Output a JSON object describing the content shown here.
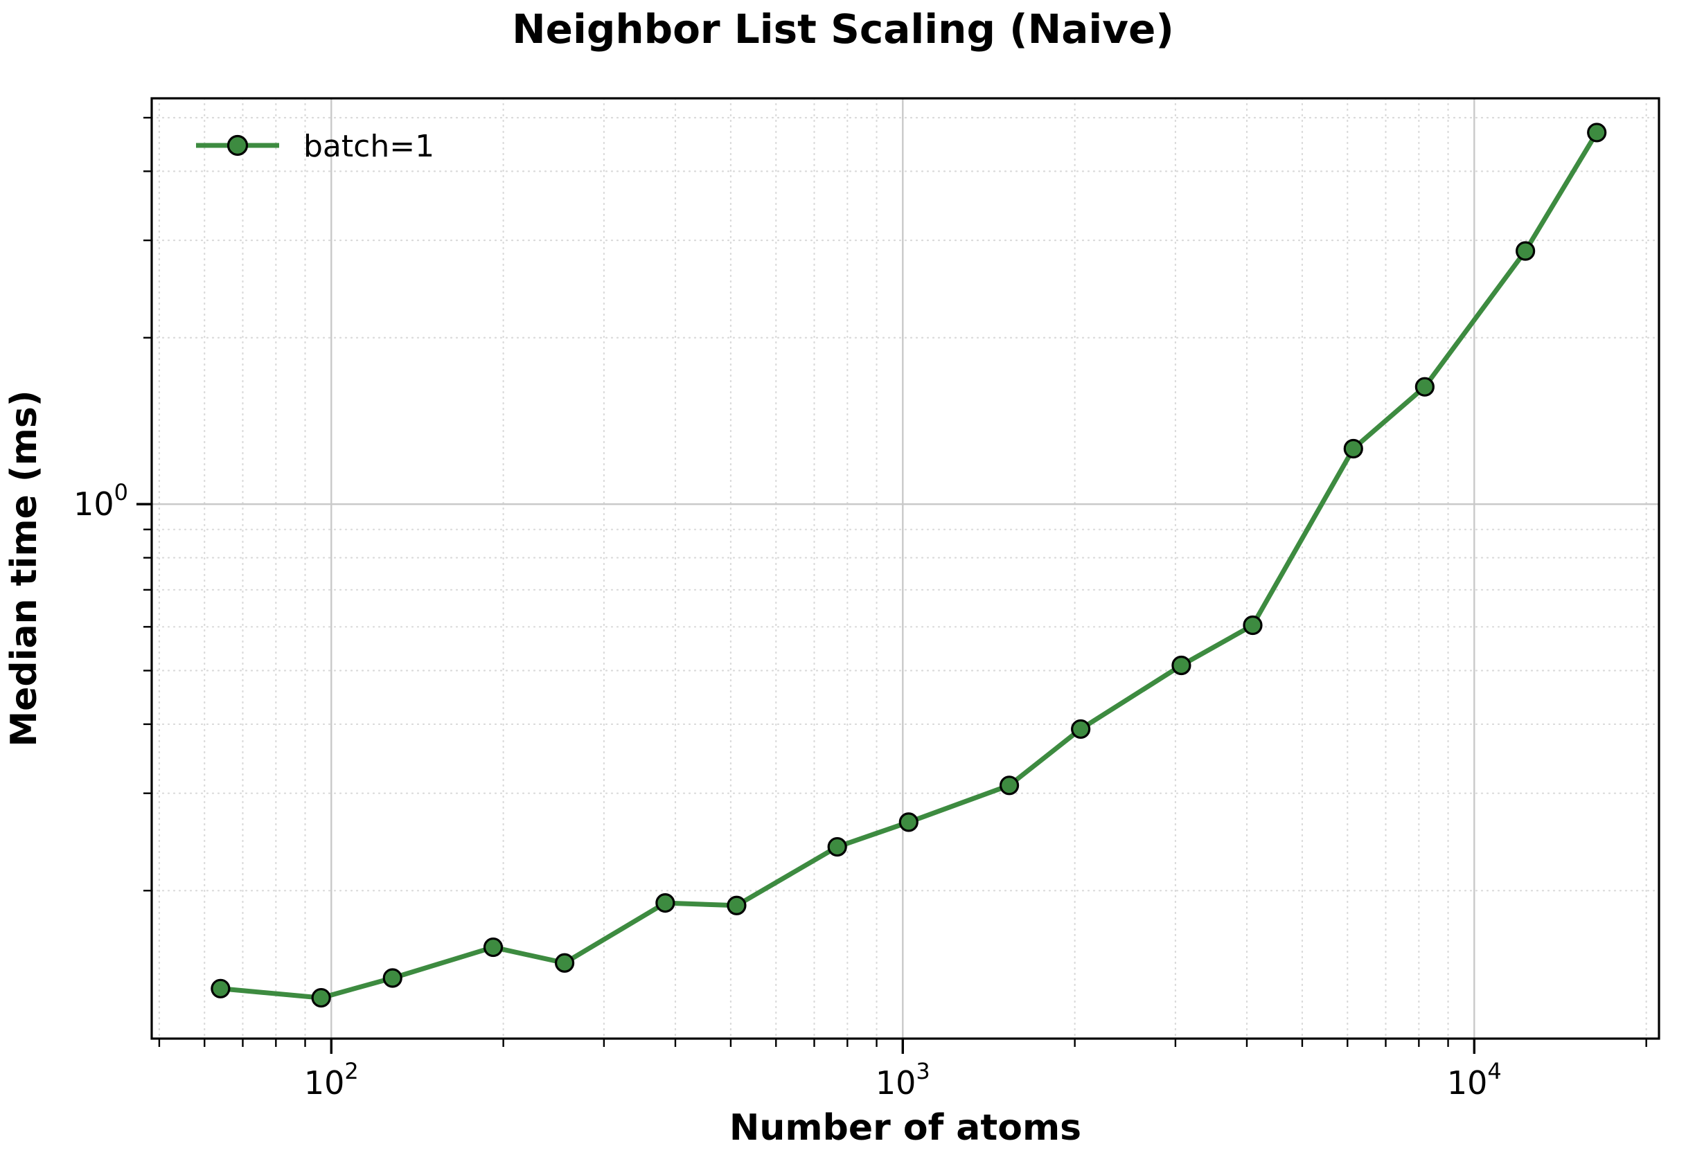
{
  "figure": {
    "title": "Neighbor List Scaling (Naive)"
  },
  "chart_data": {
    "type": "line",
    "title": "Neighbor List Scaling (Naive)",
    "xlabel": "Number of atoms",
    "ylabel": "Median time (ms)",
    "x_scale": "log",
    "y_scale": "log",
    "xlim": [
      48.5,
      21050
    ],
    "ylim": [
      0.108,
      5.42
    ],
    "grid": true,
    "grid_major_on": true,
    "grid_minor_on": true,
    "legend": {
      "position": "upper left",
      "entries": [
        "batch=1"
      ]
    },
    "series": [
      {
        "name": "batch=1",
        "color": "#3d8b40",
        "marker": "circle",
        "marker_edge_color": "#000000",
        "x": [
          64,
          96,
          128,
          192,
          256,
          384,
          512,
          768,
          1024,
          1536,
          2048,
          3072,
          4096,
          6144,
          8192,
          12288,
          16384
        ],
        "y": [
          0.133,
          0.128,
          0.139,
          0.158,
          0.148,
          0.19,
          0.188,
          0.24,
          0.266,
          0.31,
          0.392,
          0.511,
          0.604,
          1.26,
          1.63,
          2.87,
          4.7
        ]
      }
    ],
    "x_ticks_major": [
      {
        "value": 100,
        "base": "10",
        "exp": "2"
      },
      {
        "value": 1000,
        "base": "10",
        "exp": "3"
      },
      {
        "value": 10000,
        "base": "10",
        "exp": "4"
      }
    ],
    "y_ticks_major": [
      {
        "value": 1,
        "base": "10",
        "exp": "0"
      }
    ],
    "x_ticks_minor": [
      50,
      60,
      70,
      80,
      90,
      200,
      300,
      400,
      500,
      600,
      700,
      800,
      900,
      2000,
      3000,
      4000,
      5000,
      6000,
      7000,
      8000,
      9000,
      20000
    ],
    "y_ticks_minor": [
      0.2,
      0.3,
      0.4,
      0.5,
      0.6,
      0.7,
      0.8,
      0.9,
      2,
      3,
      4,
      5
    ],
    "colors": {
      "line": "#3d8b40",
      "marker_fill": "#3d8b40",
      "marker_edge": "#000000",
      "grid_major": "#c9c9c9",
      "grid_minor": "#d9d9d9",
      "spine": "#000000",
      "background": "#ffffff",
      "text": "#000000"
    }
  }
}
